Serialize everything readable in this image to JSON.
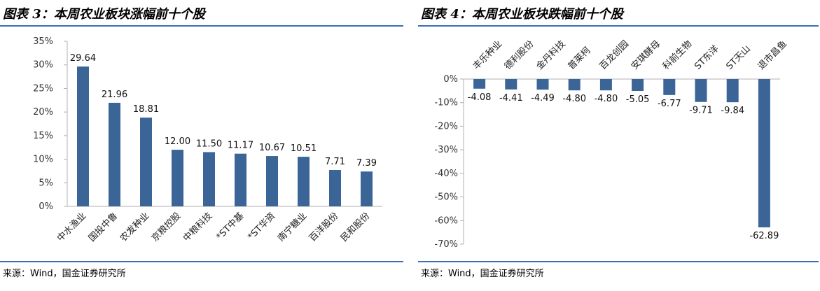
{
  "colors": {
    "bar": "#3b6497",
    "rule": "#3a6fb3",
    "axis": "#b0b0b0"
  },
  "charts": [
    {
      "figure_title": "图表 3：本周农业板块涨幅前十个股",
      "source": "来源：Wind，国金证券研究所"
    },
    {
      "figure_title": "图表 4：本周农业板块跌幅前十个股",
      "source": "来源：Wind，国金证券研究所"
    }
  ],
  "chart_data": [
    {
      "type": "bar",
      "title": "图表 3：本周农业板块涨幅前十个股",
      "categories": [
        "中水渔业",
        "国投中鲁",
        "农发种业",
        "京粮控股",
        "中粮科技",
        "*ST中基",
        "*ST华资",
        "南宁糖业",
        "百洋股份",
        "民和股份"
      ],
      "values": [
        29.64,
        21.96,
        18.81,
        12.0,
        11.5,
        11.17,
        10.67,
        10.51,
        7.71,
        7.39
      ],
      "value_labels": [
        "29.64",
        "21.96",
        "18.81",
        "12.00",
        "11.50",
        "11.17",
        "10.67",
        "10.51",
        "7.71",
        "7.39"
      ],
      "ylim": [
        0,
        35
      ],
      "yticks": [
        0,
        5,
        10,
        15,
        20,
        25,
        30,
        35
      ],
      "ytick_labels": [
        "0%",
        "5%",
        "10%",
        "15%",
        "20%",
        "25%",
        "30%",
        "35%"
      ],
      "xlabel": "",
      "ylabel": "",
      "grid": false
    },
    {
      "type": "bar",
      "title": "图表 4：本周农业板块跌幅前十个股",
      "categories": [
        "丰乐种业",
        "德利股份",
        "金丹科技",
        "普莱柯",
        "百龙创园",
        "安琪酵母",
        "科前生物",
        "ST东洋",
        "ST天山",
        "退市昌鱼"
      ],
      "values": [
        -4.08,
        -4.41,
        -4.49,
        -4.8,
        -4.8,
        -5.05,
        -6.77,
        -9.71,
        -9.84,
        -62.89
      ],
      "value_labels": [
        "-4.08",
        "-4.41",
        "-4.49",
        "-4.80",
        "-4.80",
        "-5.05",
        "-6.77",
        "-9.71",
        "-9.84",
        "-62.89"
      ],
      "ylim": [
        -70,
        0
      ],
      "yticks": [
        0,
        -10,
        -20,
        -30,
        -40,
        -50,
        -60,
        -70
      ],
      "ytick_labels": [
        "0%",
        "-10%",
        "-20%",
        "-30%",
        "-40%",
        "-50%",
        "-60%",
        "-70%"
      ],
      "xlabel": "",
      "ylabel": "",
      "grid": false
    }
  ]
}
